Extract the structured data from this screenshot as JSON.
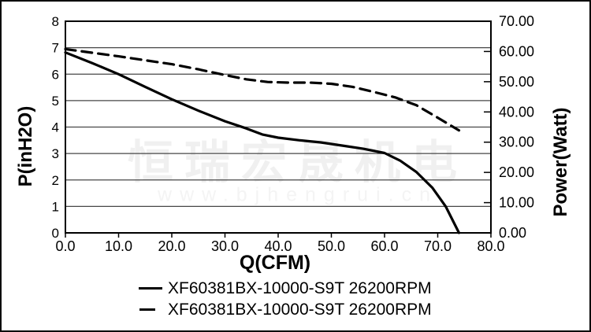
{
  "watermark": {
    "line1": "恒瑞宏晟机电",
    "line2": "www.bjhengrui.cn"
  },
  "colors": {
    "background": "#ffffff",
    "border": "#0a0a0a",
    "frame": "#000000",
    "grid": "#474747",
    "curve": "#000000",
    "watermark_cn": "#f0f0f0",
    "watermark_url": "#f4f4f4"
  },
  "legend": {
    "items": [
      {
        "label": "XF60381BX-10000-S9T 26200RPM",
        "style": "solid"
      },
      {
        "label": "XF60381BX-10000-S9T 26200RPM",
        "style": "dashed"
      }
    ]
  },
  "chart_data": {
    "type": "line",
    "title": "",
    "grid": "horizontal",
    "legend_position": "bottom",
    "x_axis": {
      "label": "Q(CFM)",
      "min": 0,
      "max": 80,
      "tick_step": 10,
      "tick_labels": [
        "0.0",
        "10.0",
        "20.0",
        "30.0",
        "40.0",
        "50.0",
        "60.0",
        "70.0",
        "80.0"
      ]
    },
    "y_axis_left": {
      "label": "P(inH2O)",
      "min": 0,
      "max": 8,
      "tick_step": 1,
      "tick_labels": [
        "0",
        "1",
        "2",
        "3",
        "4",
        "5",
        "6",
        "7",
        "8"
      ]
    },
    "y_axis_right": {
      "label": "Power(Watt)",
      "min": 0,
      "max": 70,
      "tick_step": 10,
      "tick_labels": [
        "0.00",
        "10.00",
        "20.00",
        "30.00",
        "40.00",
        "50.00",
        "60.00",
        "70.00"
      ]
    },
    "series": [
      {
        "name": "XF60381BX-10000-S9T 26200RPM",
        "style": "solid",
        "axis": "left",
        "unit": "inH2O",
        "x": [
          0,
          5,
          10,
          15,
          20,
          25,
          30,
          34,
          37,
          40,
          44,
          48,
          52,
          56,
          60,
          63,
          66,
          69,
          71.5,
          74
        ],
        "y": [
          6.82,
          6.42,
          6.0,
          5.52,
          5.05,
          4.62,
          4.22,
          3.95,
          3.72,
          3.6,
          3.5,
          3.42,
          3.3,
          3.18,
          3.02,
          2.72,
          2.3,
          1.7,
          1.0,
          0.0
        ]
      },
      {
        "name": "XF60381BX-10000-S9T 26200RPM",
        "style": "dashed",
        "axis": "right",
        "unit": "Watt",
        "x": [
          0,
          5,
          10,
          15,
          20,
          25,
          30,
          34,
          38,
          42,
          46,
          50,
          54,
          58,
          62,
          66,
          70,
          74
        ],
        "y": [
          60.8,
          59.6,
          58.4,
          57.1,
          55.8,
          54.1,
          52.2,
          50.8,
          49.9,
          49.7,
          49.7,
          49.3,
          48.3,
          46.6,
          44.8,
          42.2,
          38.1,
          33.9
        ]
      }
    ]
  }
}
